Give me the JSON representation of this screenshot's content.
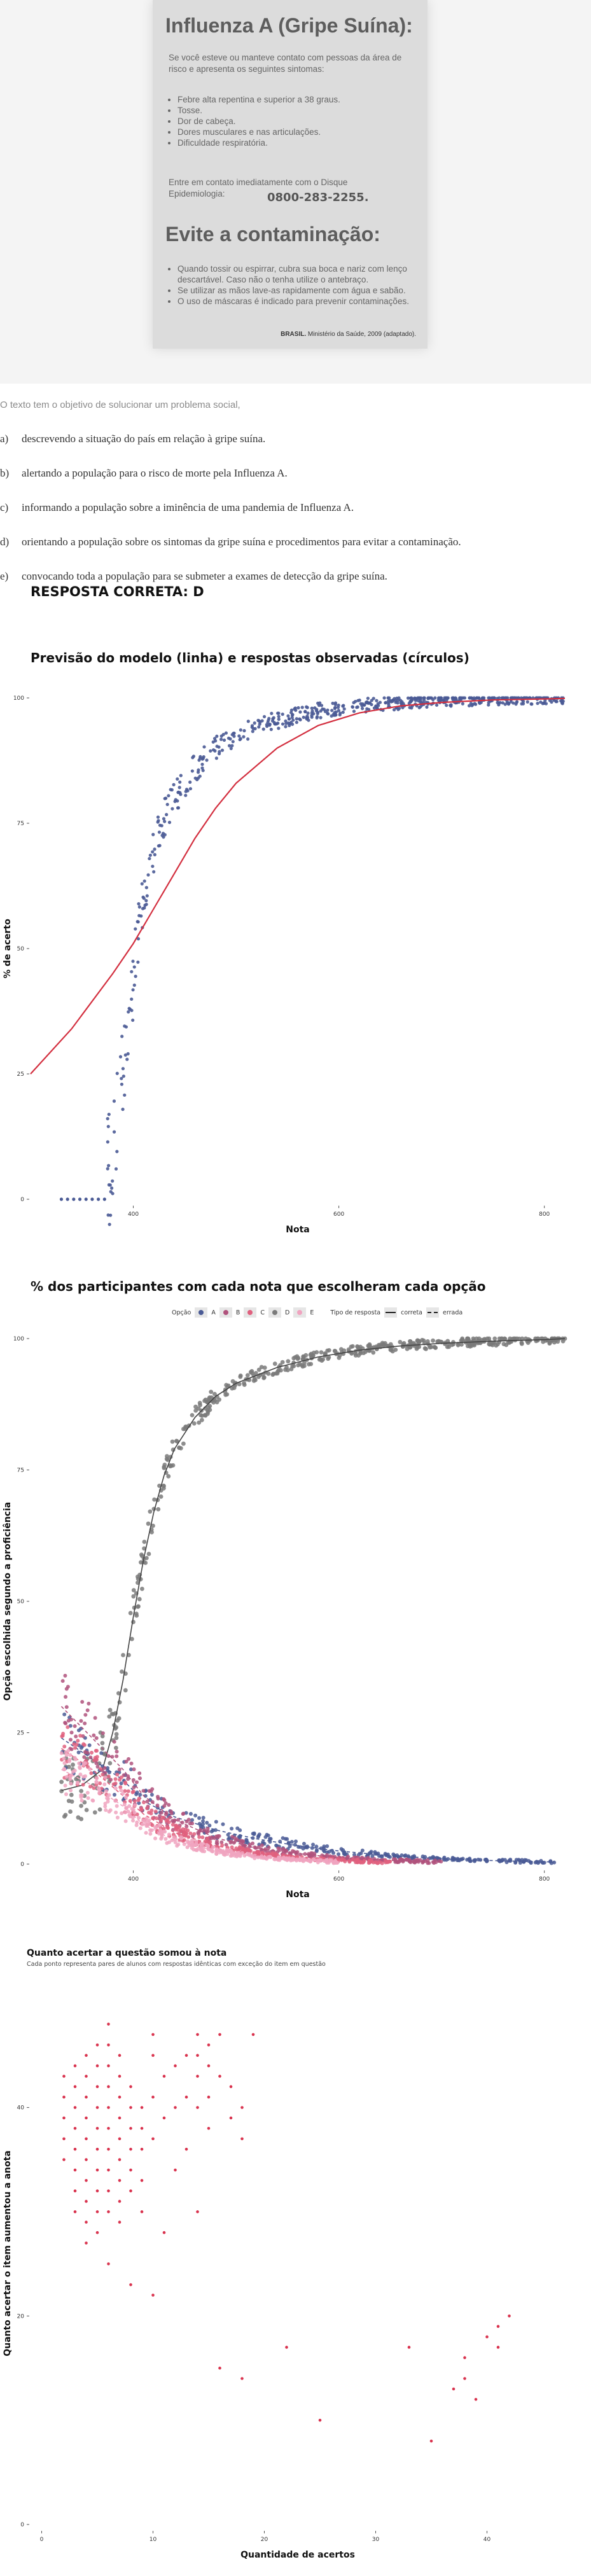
{
  "document": {
    "title": "Influenza A (Gripe Suína):",
    "intro": "Se você esteve ou manteve contato com pessoas da área de risco e apresenta os seguintes sintomas:",
    "symptoms": [
      "Febre alta repentina e superior a 38 graus.",
      "Tosse.",
      "Dor de cabeça.",
      "Dores musculares e nas articulações.",
      "Dificuldade respiratória."
    ],
    "contact": "Entre em contato imediatamente com o Disque Epidemiologia:",
    "phone": "0800-283-2255.",
    "subtitle": "Evite a contaminação:",
    "tips": [
      "Quando tossir ou espirrar, cubra sua boca e nariz com lenço descartável. Caso não o tenha utilize o antebraço.",
      "Se utilizar as mãos lave-as rapidamente com água e sabão.",
      "O uso de máscaras é indicado para prevenir contaminações."
    ],
    "source_bold": "BRASIL.",
    "source_rest": " Ministério da Saúde, 2009 (adaptado)."
  },
  "question": {
    "stem": "O texto tem o objetivo de solucionar um problema social,",
    "options": [
      {
        "letter": "a)",
        "text": "descrevendo a situação do país em relação à gripe suína."
      },
      {
        "letter": "b)",
        "text": "alertando a população para o risco de morte pela Influenza A."
      },
      {
        "letter": "c)",
        "text": "informando a população sobre a iminência de uma pandemia de Influenza A."
      },
      {
        "letter": "d)",
        "text": "orientando a população sobre os sintomas da gripe suína e procedimentos para evitar a contaminação."
      },
      {
        "letter": "e)",
        "text": "convocando toda a população para se submeter a exames de detecção da gripe suína."
      }
    ],
    "answer": "RESPOSTA CORRETA: D"
  },
  "chart_data": [
    {
      "type": "scatter",
      "title": "Previsão do modelo (linha) e respostas observadas (círculos)",
      "xlabel": "Nota",
      "ylabel": "% de acerto",
      "x_ticks": [
        400,
        600,
        800
      ],
      "y_ticks": [
        0,
        25,
        50,
        75,
        100
      ],
      "xlim": [
        300,
        820
      ],
      "ylim": [
        0,
        100
      ],
      "model_curve": {
        "x": [
          300,
          340,
          380,
          400,
          420,
          440,
          460,
          480,
          500,
          540,
          580,
          620,
          660,
          700,
          750,
          800,
          820
        ],
        "y": [
          25,
          34,
          45,
          51,
          58,
          65,
          72,
          78,
          83,
          90,
          94.5,
          97,
          98.4,
          99.1,
          99.6,
          99.8,
          99.9
        ]
      },
      "observed": {
        "x": [
          330,
          350,
          370,
          380,
          385,
          390,
          395,
          400,
          405,
          410,
          420,
          430,
          440,
          450,
          460,
          470,
          480,
          500,
          520,
          550,
          580,
          620,
          660,
          700,
          750,
          800
        ],
        "y": [
          0,
          0,
          1,
          10,
          17,
          25,
          35,
          44,
          54,
          62,
          70,
          76,
          80,
          83,
          86,
          88,
          90,
          92.5,
          94.5,
          96,
          97.5,
          98.5,
          99,
          99.5,
          99.8,
          100
        ]
      },
      "colors": {
        "curve": "#d32f3f",
        "points": "#4a5a95"
      }
    },
    {
      "type": "scatter",
      "title": "% dos participantes com cada nota que escolheram cada opção",
      "xlabel": "Nota",
      "ylabel": "Opção escolhida segundo a proficiência",
      "x_ticks": [
        400,
        600,
        800
      ],
      "y_ticks": [
        0,
        25,
        50,
        75,
        100
      ],
      "xlim": [
        300,
        820
      ],
      "ylim": [
        0,
        100
      ],
      "legend": {
        "option_title": "Opção",
        "options": [
          "A",
          "B",
          "C",
          "D",
          "E"
        ],
        "type_title": "Tipo de resposta",
        "types": [
          "correta",
          "errada"
        ],
        "position": "top"
      },
      "series": [
        {
          "name": "D",
          "kind": "correta",
          "color": "#7a7a7a",
          "x": [
            330,
            350,
            370,
            380,
            390,
            400,
            410,
            420,
            430,
            440,
            460,
            480,
            500,
            540,
            580,
            620,
            660,
            700,
            750,
            800,
            820
          ],
          "y": [
            14,
            15,
            18,
            25,
            35,
            47,
            58,
            67,
            74,
            79,
            85,
            89,
            91.5,
            94.5,
            96.5,
            97.8,
            98.6,
            99.1,
            99.5,
            99.8,
            100
          ]
        },
        {
          "name": "A",
          "kind": "errada",
          "color": "#4a5a95",
          "x": [
            330,
            360,
            390,
            410,
            440,
            480,
            520,
            560,
            600,
            650,
            700,
            760,
            810
          ],
          "y": [
            24,
            20,
            16,
            12,
            9,
            6.5,
            4.8,
            3.5,
            2.5,
            1.6,
            1,
            0.6,
            0.4
          ]
        },
        {
          "name": "B",
          "kind": "errada",
          "color": "#b0527c",
          "x": [
            330,
            360,
            390,
            410,
            440,
            480,
            520,
            560,
            600,
            650,
            700
          ],
          "y": [
            30,
            24,
            18,
            13,
            8.5,
            5,
            3,
            2,
            1.2,
            0.7,
            0.4
          ]
        },
        {
          "name": "C",
          "kind": "errada",
          "color": "#e0607e",
          "x": [
            330,
            360,
            390,
            410,
            440,
            480,
            520,
            560,
            600,
            650
          ],
          "y": [
            22,
            18,
            13,
            9.5,
            6,
            3.5,
            2,
            1.2,
            0.7,
            0.4
          ]
        },
        {
          "name": "E",
          "kind": "errada",
          "color": "#f0a4c0",
          "x": [
            330,
            360,
            390,
            410,
            440,
            480,
            520,
            560,
            600
          ],
          "y": [
            18,
            15,
            11,
            7.5,
            4.5,
            2.5,
            1.4,
            0.8,
            0.4
          ]
        }
      ]
    },
    {
      "type": "scatter",
      "title": "Quanto acertar a questão somou à nota",
      "subtitle": "Cada ponto representa pares de alunos com respostas idênticas com exceção do item em questão",
      "xlabel": "Quantidade de acertos",
      "ylabel": "Quanto acertar o item aumentou a anota",
      "x_ticks": [
        0,
        10,
        20,
        30,
        40
      ],
      "y_ticks": [
        0,
        20,
        40
      ],
      "xlim": [
        -1,
        47
      ],
      "ylim": [
        0,
        52
      ],
      "color": "#d9344f",
      "points": {
        "x": [
          2,
          2,
          2,
          2,
          2,
          3,
          3,
          3,
          3,
          3,
          3,
          3,
          3,
          4,
          4,
          4,
          4,
          4,
          4,
          4,
          4,
          4,
          4,
          5,
          5,
          5,
          5,
          5,
          5,
          5,
          5,
          5,
          5,
          6,
          6,
          6,
          6,
          6,
          6,
          6,
          6,
          6,
          6,
          6,
          7,
          7,
          7,
          7,
          7,
          7,
          7,
          7,
          7,
          8,
          8,
          8,
          8,
          8,
          8,
          8,
          9,
          9,
          9,
          9,
          9,
          10,
          10,
          10,
          10,
          10,
          11,
          11,
          11,
          12,
          12,
          12,
          13,
          13,
          13,
          14,
          14,
          14,
          14,
          14,
          15,
          15,
          15,
          15,
          16,
          16,
          16,
          17,
          17,
          18,
          18,
          18,
          19,
          22,
          25,
          35,
          37,
          38,
          38,
          39,
          40,
          41,
          41,
          42,
          33
        ],
        "y": [
          43,
          41,
          39,
          37,
          35,
          44,
          42,
          40,
          38,
          36,
          34,
          32,
          30,
          45,
          43,
          41,
          39,
          37,
          35,
          33,
          31,
          29,
          27,
          46,
          44,
          42,
          40,
          38,
          36,
          34,
          32,
          30,
          28,
          48,
          46,
          44,
          42,
          40,
          38,
          36,
          34,
          32,
          30,
          25,
          45,
          43,
          41,
          39,
          37,
          35,
          33,
          31,
          29,
          42,
          40,
          38,
          36,
          34,
          32,
          23,
          40,
          38,
          36,
          33,
          30,
          47,
          45,
          41,
          37,
          22,
          43,
          39,
          28,
          44,
          40,
          34,
          45,
          41,
          36,
          47,
          45,
          43,
          40,
          30,
          46,
          44,
          41,
          38,
          47,
          43,
          15,
          42,
          39,
          40,
          37,
          14,
          47,
          17,
          10,
          8,
          13,
          14,
          16,
          12,
          18,
          19,
          17,
          20,
          17
        ]
      }
    }
  ]
}
